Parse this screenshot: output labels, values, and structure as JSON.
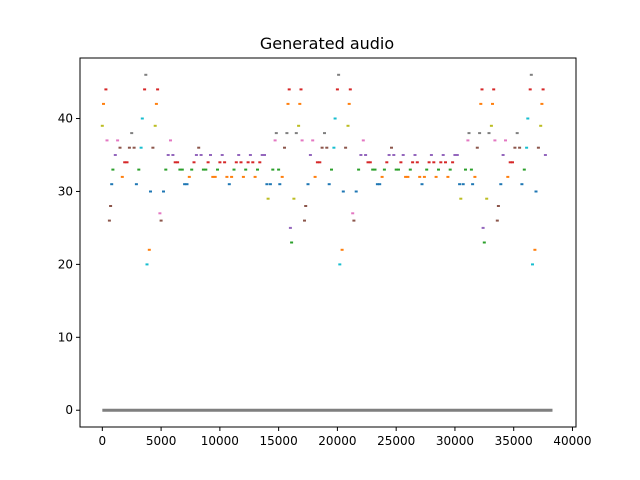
{
  "chart_data": {
    "type": "scatter",
    "title": "Generated audio",
    "xlabel": "",
    "ylabel": "",
    "xlim": [
      -1900,
      40300
    ],
    "ylim": [
      -2.3,
      48.3
    ],
    "xticks": [
      0,
      5000,
      10000,
      15000,
      20000,
      25000,
      30000,
      35000,
      40000
    ],
    "yticks": [
      0,
      10,
      20,
      30,
      40
    ],
    "grid": false,
    "legend": "none",
    "colors": [
      "#1f77b4",
      "#ff7f0e",
      "#2ca02c",
      "#d62728",
      "#9467bd",
      "#8c564b",
      "#e377c2",
      "#7f7f7f",
      "#bcbd22",
      "#17becf"
    ],
    "baseline": {
      "y": 0,
      "x_start": 0,
      "x_end": 38300,
      "color": "#7f7f7f"
    },
    "points": [
      [
        0,
        39,
        8
      ],
      [
        100,
        42,
        1
      ],
      [
        300,
        44,
        3
      ],
      [
        400,
        37,
        6
      ],
      [
        600,
        26,
        5
      ],
      [
        700,
        28,
        5
      ],
      [
        800,
        31,
        0
      ],
      [
        900,
        33,
        2
      ],
      [
        1100,
        35,
        4
      ],
      [
        1300,
        37,
        6
      ],
      [
        1500,
        36,
        5
      ],
      [
        1700,
        32,
        1
      ],
      [
        1900,
        34,
        3
      ],
      [
        2100,
        34,
        3
      ],
      [
        2300,
        36,
        5
      ],
      [
        2500,
        38,
        7
      ],
      [
        2700,
        36,
        5
      ],
      [
        2900,
        31,
        0
      ],
      [
        3100,
        33,
        2
      ],
      [
        3300,
        36,
        9
      ],
      [
        3400,
        40,
        9
      ],
      [
        3600,
        44,
        3
      ],
      [
        3700,
        46,
        7
      ],
      [
        3800,
        20,
        9
      ],
      [
        4000,
        22,
        1
      ],
      [
        4100,
        30,
        0
      ],
      [
        4300,
        36,
        5
      ],
      [
        4500,
        39,
        8
      ],
      [
        4600,
        42,
        1
      ],
      [
        4700,
        44,
        3
      ],
      [
        4900,
        27,
        6
      ],
      [
        5000,
        26,
        5
      ],
      [
        5200,
        30,
        0
      ],
      [
        5400,
        33,
        2
      ],
      [
        5600,
        35,
        4
      ],
      [
        5800,
        37,
        6
      ],
      [
        6000,
        35,
        4
      ],
      [
        6200,
        34,
        3
      ],
      [
        6400,
        34,
        3
      ],
      [
        6600,
        33,
        2
      ],
      [
        6800,
        33,
        2
      ],
      [
        7000,
        31,
        0
      ],
      [
        7200,
        31,
        0
      ],
      [
        7400,
        32,
        1
      ],
      [
        7600,
        33,
        2
      ],
      [
        7800,
        34,
        3
      ],
      [
        8000,
        35,
        4
      ],
      [
        8200,
        36,
        5
      ],
      [
        8400,
        35,
        4
      ],
      [
        8600,
        33,
        2
      ],
      [
        8800,
        33,
        2
      ],
      [
        9000,
        34,
        3
      ],
      [
        9200,
        35,
        4
      ],
      [
        9400,
        32,
        1
      ],
      [
        9600,
        32,
        1
      ],
      [
        9800,
        33,
        2
      ],
      [
        10000,
        34,
        3
      ],
      [
        10200,
        35,
        4
      ],
      [
        10400,
        34,
        3
      ],
      [
        10600,
        32,
        1
      ],
      [
        10800,
        31,
        0
      ],
      [
        11000,
        32,
        1
      ],
      [
        11200,
        33,
        2
      ],
      [
        11400,
        34,
        3
      ],
      [
        11600,
        35,
        4
      ],
      [
        11800,
        34,
        3
      ],
      [
        12000,
        32,
        1
      ],
      [
        12200,
        33,
        2
      ],
      [
        12400,
        34,
        3
      ],
      [
        12600,
        35,
        4
      ],
      [
        12800,
        34,
        3
      ],
      [
        13000,
        32,
        1
      ],
      [
        13200,
        33,
        2
      ],
      [
        13400,
        34,
        3
      ],
      [
        13600,
        35,
        4
      ],
      [
        13800,
        35,
        4
      ],
      [
        14000,
        31,
        0
      ],
      [
        14100,
        29,
        8
      ],
      [
        14300,
        31,
        0
      ],
      [
        14500,
        33,
        2
      ],
      [
        14700,
        37,
        6
      ],
      [
        14800,
        38,
        7
      ],
      [
        15000,
        33,
        2
      ],
      [
        15100,
        31,
        0
      ],
      [
        15300,
        32,
        1
      ],
      [
        15500,
        36,
        5
      ],
      [
        15700,
        38,
        7
      ],
      [
        15800,
        42,
        1
      ],
      [
        15900,
        44,
        3
      ],
      [
        16000,
        25,
        4
      ],
      [
        16100,
        23,
        2
      ],
      [
        16300,
        29,
        8
      ],
      [
        16500,
        38,
        7
      ],
      [
        16700,
        39,
        8
      ],
      [
        16800,
        42,
        1
      ],
      [
        16900,
        44,
        3
      ],
      [
        17000,
        37,
        6
      ],
      [
        17200,
        26,
        5
      ],
      [
        17300,
        28,
        5
      ],
      [
        17500,
        31,
        0
      ],
      [
        17700,
        35,
        4
      ],
      [
        17900,
        37,
        6
      ],
      [
        18100,
        32,
        1
      ],
      [
        18300,
        34,
        3
      ],
      [
        18500,
        34,
        3
      ],
      [
        18700,
        36,
        5
      ],
      [
        18900,
        38,
        7
      ],
      [
        19100,
        36,
        5
      ],
      [
        19300,
        31,
        0
      ],
      [
        19500,
        33,
        2
      ],
      [
        19700,
        36,
        9
      ],
      [
        19800,
        40,
        9
      ],
      [
        20000,
        44,
        3
      ],
      [
        20100,
        46,
        7
      ],
      [
        20200,
        20,
        9
      ],
      [
        20400,
        22,
        1
      ],
      [
        20500,
        30,
        0
      ],
      [
        20700,
        36,
        5
      ],
      [
        20900,
        39,
        8
      ],
      [
        21000,
        42,
        1
      ],
      [
        21100,
        44,
        3
      ],
      [
        21300,
        27,
        6
      ],
      [
        21400,
        26,
        5
      ],
      [
        21600,
        30,
        0
      ],
      [
        21800,
        33,
        2
      ],
      [
        22000,
        35,
        4
      ],
      [
        22200,
        37,
        6
      ],
      [
        22400,
        35,
        4
      ],
      [
        22600,
        34,
        3
      ],
      [
        22800,
        34,
        3
      ],
      [
        23000,
        33,
        2
      ],
      [
        23200,
        33,
        2
      ],
      [
        23400,
        31,
        0
      ],
      [
        23600,
        31,
        0
      ],
      [
        23800,
        32,
        1
      ],
      [
        24000,
        33,
        2
      ],
      [
        24200,
        34,
        3
      ],
      [
        24400,
        35,
        4
      ],
      [
        24600,
        36,
        5
      ],
      [
        24800,
        35,
        4
      ],
      [
        25000,
        33,
        2
      ],
      [
        25200,
        33,
        2
      ],
      [
        25400,
        34,
        3
      ],
      [
        25600,
        35,
        4
      ],
      [
        25800,
        32,
        1
      ],
      [
        26000,
        32,
        1
      ],
      [
        26200,
        33,
        2
      ],
      [
        26400,
        34,
        3
      ],
      [
        26600,
        35,
        4
      ],
      [
        26800,
        34,
        3
      ],
      [
        27000,
        32,
        1
      ],
      [
        27200,
        31,
        0
      ],
      [
        27400,
        32,
        1
      ],
      [
        27600,
        33,
        2
      ],
      [
        27800,
        34,
        3
      ],
      [
        28000,
        35,
        4
      ],
      [
        28200,
        34,
        3
      ],
      [
        28400,
        32,
        1
      ],
      [
        28600,
        33,
        2
      ],
      [
        28800,
        34,
        3
      ],
      [
        29000,
        35,
        4
      ],
      [
        29200,
        34,
        3
      ],
      [
        29400,
        32,
        1
      ],
      [
        29600,
        33,
        2
      ],
      [
        29800,
        34,
        3
      ],
      [
        30000,
        35,
        4
      ],
      [
        30200,
        35,
        4
      ],
      [
        30400,
        31,
        0
      ],
      [
        30500,
        29,
        8
      ],
      [
        30700,
        31,
        0
      ],
      [
        30900,
        33,
        2
      ],
      [
        31100,
        37,
        6
      ],
      [
        31200,
        38,
        7
      ],
      [
        31400,
        33,
        2
      ],
      [
        31500,
        31,
        0
      ],
      [
        31700,
        32,
        1
      ],
      [
        31900,
        36,
        5
      ],
      [
        32100,
        38,
        7
      ],
      [
        32200,
        42,
        1
      ],
      [
        32300,
        44,
        3
      ],
      [
        32400,
        25,
        4
      ],
      [
        32500,
        23,
        2
      ],
      [
        32700,
        29,
        8
      ],
      [
        32900,
        38,
        7
      ],
      [
        33100,
        39,
        8
      ],
      [
        33200,
        42,
        1
      ],
      [
        33300,
        44,
        3
      ],
      [
        33400,
        37,
        6
      ],
      [
        33600,
        26,
        5
      ],
      [
        33700,
        28,
        5
      ],
      [
        33900,
        31,
        0
      ],
      [
        34100,
        35,
        4
      ],
      [
        34300,
        37,
        6
      ],
      [
        34500,
        32,
        1
      ],
      [
        34700,
        34,
        3
      ],
      [
        34900,
        34,
        3
      ],
      [
        35100,
        36,
        5
      ],
      [
        35300,
        38,
        7
      ],
      [
        35500,
        36,
        5
      ],
      [
        35700,
        31,
        0
      ],
      [
        35900,
        33,
        2
      ],
      [
        36100,
        36,
        9
      ],
      [
        36200,
        40,
        9
      ],
      [
        36400,
        44,
        3
      ],
      [
        36500,
        46,
        7
      ],
      [
        36600,
        20,
        9
      ],
      [
        36800,
        22,
        1
      ],
      [
        36900,
        30,
        0
      ],
      [
        37100,
        36,
        5
      ],
      [
        37300,
        39,
        8
      ],
      [
        37400,
        42,
        1
      ],
      [
        37500,
        44,
        3
      ],
      [
        37700,
        35,
        4
      ]
    ]
  }
}
